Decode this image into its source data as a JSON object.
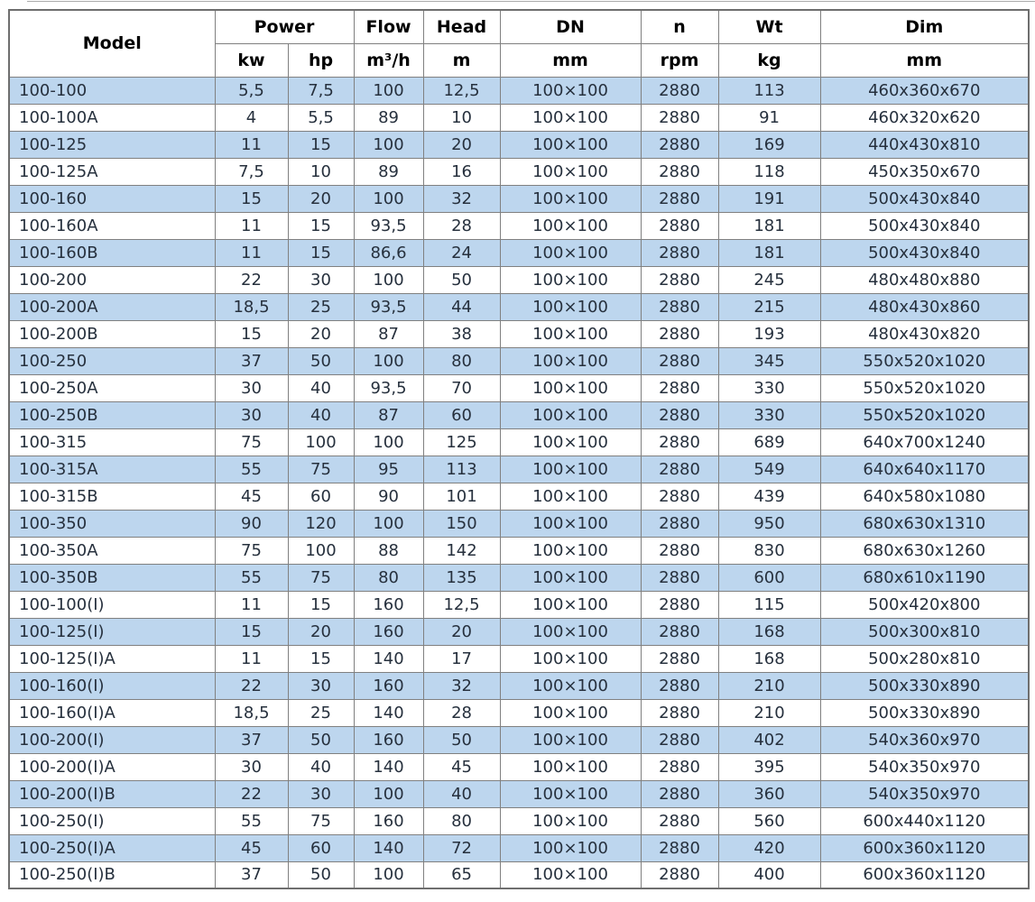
{
  "table": {
    "header": {
      "model": "Model",
      "power": "Power",
      "flow": "Flow",
      "head": "Head",
      "dn": "DN",
      "n": "n",
      "wt": "Wt",
      "dim": "Dim",
      "units": {
        "kw": "kw",
        "hp": "hp",
        "flow": "m³/h",
        "head": "m",
        "dn": "mm",
        "n": "rpm",
        "wt": "kg",
        "dim": "mm"
      }
    },
    "column_keys": [
      "model",
      "kw",
      "hp",
      "flow",
      "head",
      "dn",
      "n",
      "wt",
      "dim"
    ],
    "rows": [
      {
        "model": "100-100",
        "kw": "5,5",
        "hp": "7,5",
        "flow": "100",
        "head": "12,5",
        "dn": "100×100",
        "n": "2880",
        "wt": "113",
        "dim": "460x360x670"
      },
      {
        "model": "100-100A",
        "kw": "4",
        "hp": "5,5",
        "flow": "89",
        "head": "10",
        "dn": "100×100",
        "n": "2880",
        "wt": "91",
        "dim": "460x320x620"
      },
      {
        "model": "100-125",
        "kw": "11",
        "hp": "15",
        "flow": "100",
        "head": "20",
        "dn": "100×100",
        "n": "2880",
        "wt": "169",
        "dim": "440x430x810"
      },
      {
        "model": "100-125A",
        "kw": "7,5",
        "hp": "10",
        "flow": "89",
        "head": "16",
        "dn": "100×100",
        "n": "2880",
        "wt": "118",
        "dim": "450x350x670"
      },
      {
        "model": "100-160",
        "kw": "15",
        "hp": "20",
        "flow": "100",
        "head": "32",
        "dn": "100×100",
        "n": "2880",
        "wt": "191",
        "dim": "500x430x840"
      },
      {
        "model": "100-160A",
        "kw": "11",
        "hp": "15",
        "flow": "93,5",
        "head": "28",
        "dn": "100×100",
        "n": "2880",
        "wt": "181",
        "dim": "500x430x840"
      },
      {
        "model": "100-160B",
        "kw": "11",
        "hp": "15",
        "flow": "86,6",
        "head": "24",
        "dn": "100×100",
        "n": "2880",
        "wt": "181",
        "dim": "500x430x840"
      },
      {
        "model": "100-200",
        "kw": "22",
        "hp": "30",
        "flow": "100",
        "head": "50",
        "dn": "100×100",
        "n": "2880",
        "wt": "245",
        "dim": "480x480x880"
      },
      {
        "model": "100-200A",
        "kw": "18,5",
        "hp": "25",
        "flow": "93,5",
        "head": "44",
        "dn": "100×100",
        "n": "2880",
        "wt": "215",
        "dim": "480x430x860"
      },
      {
        "model": "100-200B",
        "kw": "15",
        "hp": "20",
        "flow": "87",
        "head": "38",
        "dn": "100×100",
        "n": "2880",
        "wt": "193",
        "dim": "480x430x820"
      },
      {
        "model": "100-250",
        "kw": "37",
        "hp": "50",
        "flow": "100",
        "head": "80",
        "dn": "100×100",
        "n": "2880",
        "wt": "345",
        "dim": "550x520x1020"
      },
      {
        "model": "100-250A",
        "kw": "30",
        "hp": "40",
        "flow": "93,5",
        "head": "70",
        "dn": "100×100",
        "n": "2880",
        "wt": "330",
        "dim": "550x520x1020"
      },
      {
        "model": "100-250B",
        "kw": "30",
        "hp": "40",
        "flow": "87",
        "head": "60",
        "dn": "100×100",
        "n": "2880",
        "wt": "330",
        "dim": "550x520x1020"
      },
      {
        "model": "100-315",
        "kw": "75",
        "hp": "100",
        "flow": "100",
        "head": "125",
        "dn": "100×100",
        "n": "2880",
        "wt": "689",
        "dim": "640x700x1240"
      },
      {
        "model": "100-315A",
        "kw": "55",
        "hp": "75",
        "flow": "95",
        "head": "113",
        "dn": "100×100",
        "n": "2880",
        "wt": "549",
        "dim": "640x640x1170"
      },
      {
        "model": "100-315B",
        "kw": "45",
        "hp": "60",
        "flow": "90",
        "head": "101",
        "dn": "100×100",
        "n": "2880",
        "wt": "439",
        "dim": "640x580x1080"
      },
      {
        "model": "100-350",
        "kw": "90",
        "hp": "120",
        "flow": "100",
        "head": "150",
        "dn": "100×100",
        "n": "2880",
        "wt": "950",
        "dim": "680x630x1310"
      },
      {
        "model": "100-350A",
        "kw": "75",
        "hp": "100",
        "flow": "88",
        "head": "142",
        "dn": "100×100",
        "n": "2880",
        "wt": "830",
        "dim": "680x630x1260"
      },
      {
        "model": "100-350B",
        "kw": "55",
        "hp": "75",
        "flow": "80",
        "head": "135",
        "dn": "100×100",
        "n": "2880",
        "wt": "600",
        "dim": "680x610x1190"
      },
      {
        "model": "100-100(I)",
        "kw": "11",
        "hp": "15",
        "flow": "160",
        "head": "12,5",
        "dn": "100×100",
        "n": "2880",
        "wt": "115",
        "dim": "500x420x800"
      },
      {
        "model": "100-125(I)",
        "kw": "15",
        "hp": "20",
        "flow": "160",
        "head": "20",
        "dn": "100×100",
        "n": "2880",
        "wt": "168",
        "dim": "500x300x810"
      },
      {
        "model": "100-125(I)A",
        "kw": "11",
        "hp": "15",
        "flow": "140",
        "head": "17",
        "dn": "100×100",
        "n": "2880",
        "wt": "168",
        "dim": "500x280x810"
      },
      {
        "model": "100-160(I)",
        "kw": "22",
        "hp": "30",
        "flow": "160",
        "head": "32",
        "dn": "100×100",
        "n": "2880",
        "wt": "210",
        "dim": "500x330x890"
      },
      {
        "model": "100-160(I)A",
        "kw": "18,5",
        "hp": "25",
        "flow": "140",
        "head": "28",
        "dn": "100×100",
        "n": "2880",
        "wt": "210",
        "dim": "500x330x890"
      },
      {
        "model": "100-200(I)",
        "kw": "37",
        "hp": "50",
        "flow": "160",
        "head": "50",
        "dn": "100×100",
        "n": "2880",
        "wt": "402",
        "dim": "540x360x970"
      },
      {
        "model": "100-200(I)A",
        "kw": "30",
        "hp": "40",
        "flow": "140",
        "head": "45",
        "dn": "100×100",
        "n": "2880",
        "wt": "395",
        "dim": "540x350x970"
      },
      {
        "model": "100-200(I)B",
        "kw": "22",
        "hp": "30",
        "flow": "100",
        "head": "40",
        "dn": "100×100",
        "n": "2880",
        "wt": "360",
        "dim": "540x350x970"
      },
      {
        "model": "100-250(I)",
        "kw": "55",
        "hp": "75",
        "flow": "160",
        "head": "80",
        "dn": "100×100",
        "n": "2880",
        "wt": "560",
        "dim": "600x440x1120"
      },
      {
        "model": "100-250(I)A",
        "kw": "45",
        "hp": "60",
        "flow": "140",
        "head": "72",
        "dn": "100×100",
        "n": "2880",
        "wt": "420",
        "dim": "600x360x1120"
      },
      {
        "model": "100-250(I)B",
        "kw": "37",
        "hp": "50",
        "flow": "100",
        "head": "65",
        "dn": "100×100",
        "n": "2880",
        "wt": "400",
        "dim": "600x360x1120"
      }
    ]
  },
  "colors": {
    "row_highlight": "#BDD6EE",
    "row_plain": "#FFFFFF",
    "grid_border": "#808080",
    "outer_border": "#6E6E6E",
    "header_text": "#000000",
    "data_text": "#26303D",
    "page_bg": "#FFFFFF"
  }
}
